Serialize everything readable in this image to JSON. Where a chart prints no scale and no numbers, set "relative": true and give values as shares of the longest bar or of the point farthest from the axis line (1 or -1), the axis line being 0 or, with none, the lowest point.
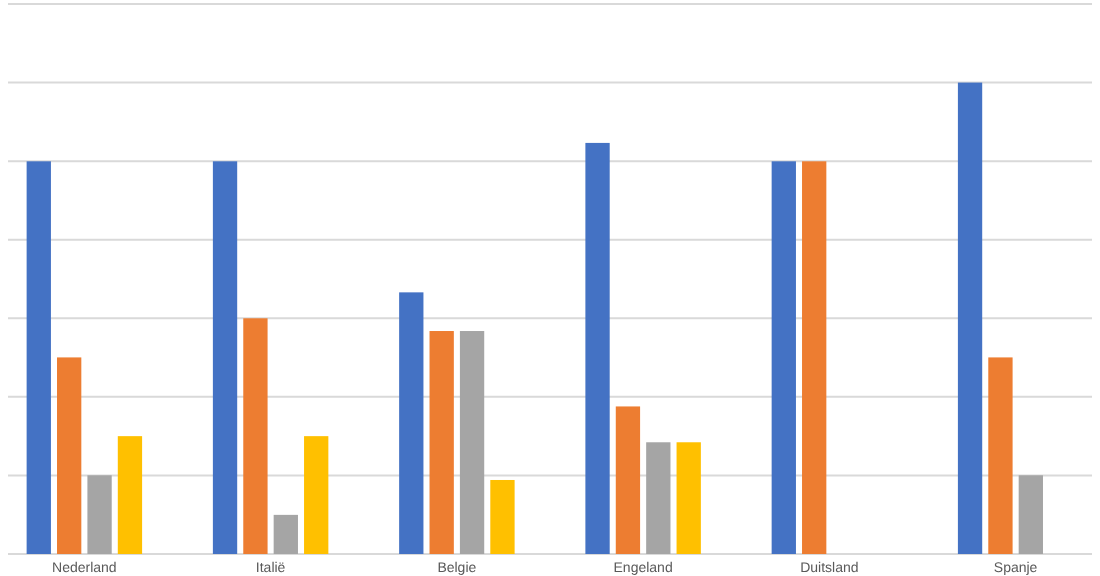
{
  "chart_data": {
    "type": "bar",
    "relative": true,
    "grid": "y",
    "categories": [
      "Nederland",
      "Italië",
      "Belgie",
      "Engeland",
      "Duitsland",
      "Spanje"
    ],
    "series": [
      {
        "color": "#4472c4",
        "values": [
          0.833,
          0.833,
          0.555,
          0.872,
          0.833,
          1
        ]
      },
      {
        "color": "#ed7d31",
        "values": [
          0.417,
          0.5,
          0.473,
          0.313,
          0.833,
          0.417
        ]
      },
      {
        "color": "#a5a5a5",
        "values": [
          0.167,
          0.083,
          0.473,
          0.237,
          null,
          0.167
        ]
      },
      {
        "color": "#ffc000",
        "values": [
          0.25,
          0.25,
          0.157,
          0.237,
          null,
          null
        ]
      }
    ]
  }
}
